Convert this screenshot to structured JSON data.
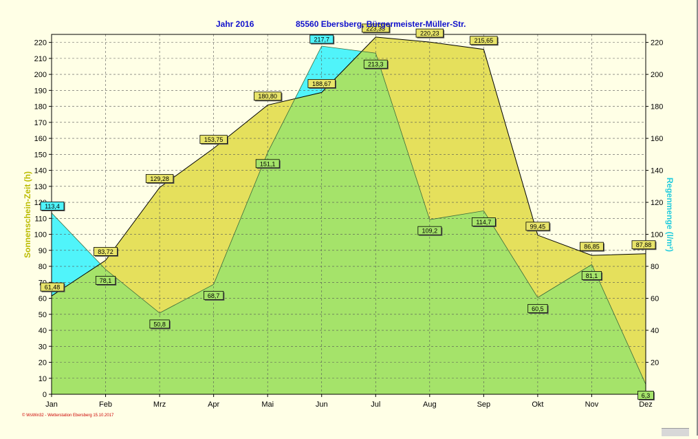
{
  "chart_data": {
    "type": "area",
    "title_left": "Jahr  2016",
    "title_right": "85560 Ebersberg, Bürgermeister-Müller-Str.",
    "ylabel_left": "Sonnenschein-Zeit  (h)",
    "ylabel_right": "Regenmenge  (l/m²)",
    "footer": "© WsWin32 - Wetterstation Ebersberg 15.10.2017",
    "categories": [
      "Jan",
      "Feb",
      "Mrz",
      "Apr",
      "Mai",
      "Jun",
      "Jul",
      "Aug",
      "Sep",
      "Okt",
      "Nov",
      "Dez"
    ],
    "y_left": {
      "min": 0,
      "max": 225,
      "ticks": [
        0,
        10,
        20,
        30,
        40,
        50,
        60,
        70,
        80,
        90,
        100,
        110,
        120,
        130,
        140,
        150,
        160,
        170,
        180,
        190,
        200,
        210,
        220
      ]
    },
    "y_right": {
      "min": 0,
      "max": 225,
      "ticks": [
        0,
        20,
        40,
        60,
        80,
        100,
        120,
        140,
        160,
        180,
        200,
        220
      ]
    },
    "grid": true,
    "series": [
      {
        "axis": "left",
        "values": [
          61.48,
          83.72,
          129.28,
          153.75,
          180.8,
          188.67,
          223.33,
          220.23,
          215.65,
          99.45,
          86.85,
          87.88
        ],
        "labels": [
          "61,48",
          "83,72",
          "129,28",
          "153,75",
          "180,80",
          "188,67",
          "223,33",
          "220,23",
          "215,65",
          "99,45",
          "86,85",
          "87,88"
        ]
      },
      {
        "axis": "right",
        "values": [
          113.4,
          78.1,
          50.8,
          68.7,
          151.1,
          217.7,
          213.3,
          109.2,
          114.7,
          60.5,
          81.1,
          6.3
        ],
        "labels": [
          "113,4",
          "78,1",
          "50,8",
          "68,7",
          "151,1",
          "217,7",
          "213,3",
          "109,2",
          "114,7",
          "60,5",
          "81,1",
          "6,3"
        ]
      }
    ],
    "colors": {
      "background": "#FFFFE6",
      "sun_fill": "#E5E05C",
      "rain_fill": "#50F4FA",
      "overlap_fill": "#A5E36A",
      "sun_label_bg": "#E8E46A",
      "rain_label_bg": "#A5E36A",
      "rain_label_bg_high": "#50F4FA",
      "title": "#1010CC",
      "left_axis_title": "#BBBB00",
      "right_axis_title": "#22CCDD",
      "footer": "#CC0000"
    }
  }
}
